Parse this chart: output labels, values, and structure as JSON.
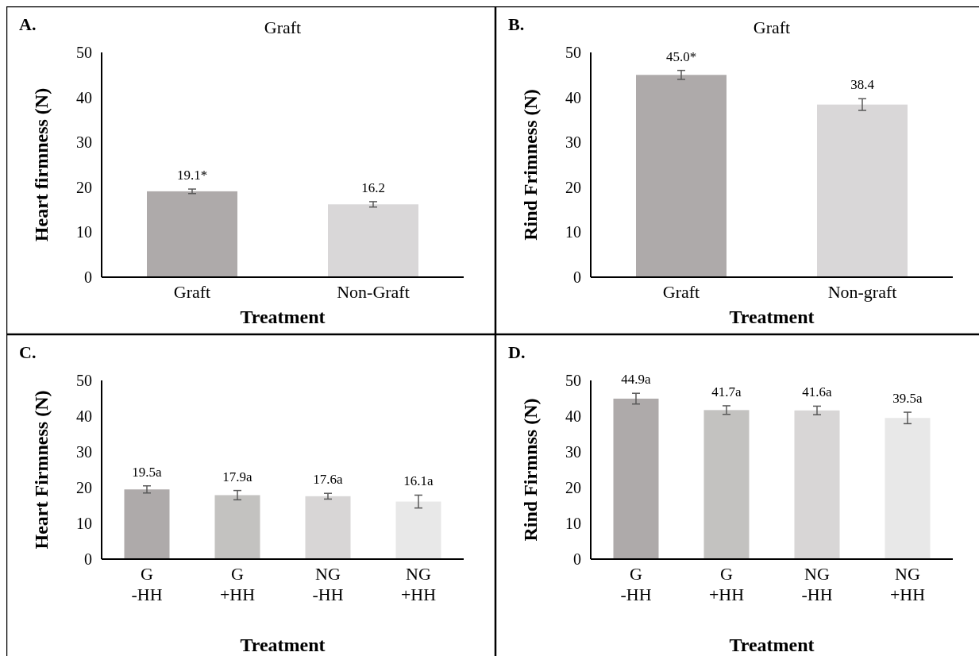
{
  "chart_data": [
    {
      "type": "bar",
      "title": "Graft",
      "annotations": [
        "A."
      ],
      "xlabel": "Treatment",
      "ylabel": "Heart firmness (N)",
      "categories": [
        "Graft",
        "Non-Graft"
      ],
      "values": [
        19.1,
        16.2
      ],
      "colors": [
        "#aeaaaa",
        "#d9d7d8"
      ],
      "errors": [
        0.5,
        0.6
      ],
      "value_labels": [
        "19.1*",
        "16.2"
      ],
      "ylim": [
        0,
        50
      ],
      "yticks": [
        0,
        10,
        20,
        30,
        40,
        50
      ]
    },
    {
      "type": "bar",
      "title": "Graft",
      "annotations": [
        "B."
      ],
      "xlabel": "Treatment",
      "ylabel": "Rind Frimness (N)",
      "categories": [
        "Graft",
        "Non-graft"
      ],
      "values": [
        45.0,
        38.4
      ],
      "colors": [
        "#aeaaaa",
        "#d9d7d8"
      ],
      "errors": [
        1.0,
        1.3
      ],
      "value_labels": [
        "45.0*",
        "38.4"
      ],
      "ylim": [
        0,
        50
      ],
      "yticks": [
        0,
        10,
        20,
        30,
        40,
        50
      ]
    },
    {
      "type": "bar",
      "annotations": [
        "C."
      ],
      "xlabel": "Treatment",
      "ylabel": "Heart Firmness (N)",
      "categories": [
        "G -HH",
        "G +HH",
        "NG -HH",
        "NG +HH"
      ],
      "values": [
        19.5,
        17.9,
        17.6,
        16.1
      ],
      "colors": [
        "#aeaaaa",
        "#c3c2c0",
        "#d8d6d6",
        "#e8e8e8"
      ],
      "errors": [
        1.0,
        1.3,
        0.8,
        1.8
      ],
      "value_labels": [
        "19.5a",
        "17.9a",
        "17.6a",
        "16.1a"
      ],
      "ylim": [
        0,
        50
      ],
      "yticks": [
        0,
        10,
        20,
        30,
        40,
        50
      ]
    },
    {
      "type": "bar",
      "annotations": [
        "D."
      ],
      "xlabel": "Treatment",
      "ylabel": "Rind Firmnss (N)",
      "categories": [
        "G -HH",
        "G +HH",
        "NG -HH",
        "NG +HH"
      ],
      "values": [
        44.9,
        41.7,
        41.6,
        39.5
      ],
      "colors": [
        "#aeaaaa",
        "#c3c2c0",
        "#d8d6d6",
        "#e8e8e8"
      ],
      "errors": [
        1.5,
        1.2,
        1.2,
        1.6
      ],
      "value_labels": [
        "44.9a",
        "41.7a",
        "41.6a",
        "39.5a"
      ],
      "ylim": [
        0,
        50
      ],
      "yticks": [
        0,
        10,
        20,
        30,
        40,
        50
      ]
    }
  ]
}
